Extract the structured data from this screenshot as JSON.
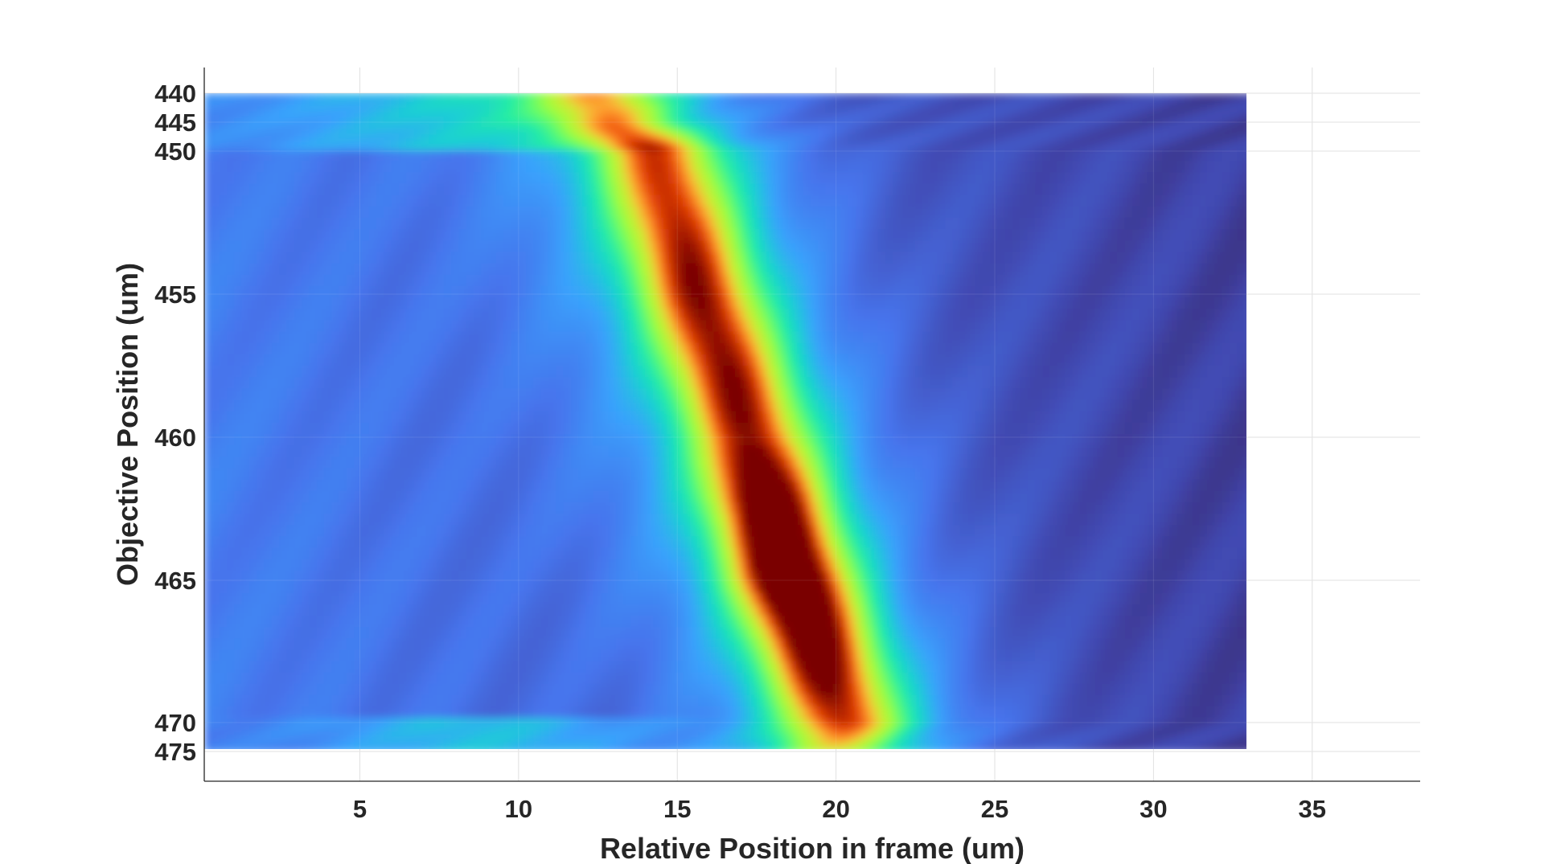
{
  "chart_data": {
    "type": "heatmap",
    "title": "",
    "xlabel": "Relative Position in frame (um)",
    "ylabel": "Objective Position (um)",
    "xlim": [
      0.1,
      38.4
    ],
    "x_data_range": [
      0.1,
      33.1
    ],
    "x_ticks": [
      5,
      10,
      15,
      20,
      25,
      30,
      35
    ],
    "y_ticks": [
      440,
      445,
      450,
      455,
      460,
      465,
      470,
      475
    ],
    "y_scale": "categorical-nonuniform",
    "grid": true,
    "colormap": "turbo",
    "colorbar": false,
    "ridge": {
      "description_units": "x position of intensity peak per objective position",
      "y": [
        440,
        445,
        450,
        455,
        460,
        462,
        465,
        470,
        475
      ],
      "x_peak": [
        12.5,
        13.0,
        14.3,
        15.7,
        17.3,
        17.8,
        18.6,
        20.2,
        20.0
      ],
      "peak_intensity": [
        0.42,
        0.45,
        0.62,
        0.72,
        0.72,
        0.88,
        0.98,
        0.68,
        0.4
      ]
    }
  }
}
